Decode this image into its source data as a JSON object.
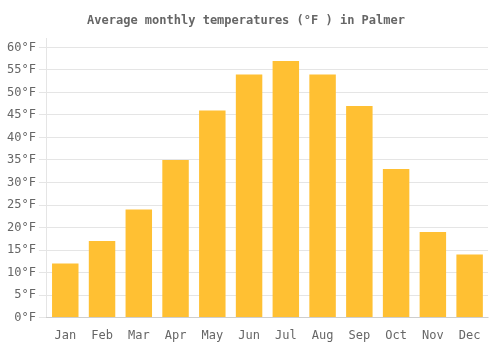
{
  "chart_data": {
    "type": "bar",
    "title": "Average monthly temperatures (°F ) in Palmer",
    "categories": [
      "Jan",
      "Feb",
      "Mar",
      "Apr",
      "May",
      "Jun",
      "Jul",
      "Aug",
      "Sep",
      "Oct",
      "Nov",
      "Dec"
    ],
    "values": [
      12,
      17,
      24,
      35,
      46,
      54,
      57,
      54,
      47,
      33,
      19,
      14
    ],
    "color": "#FFC033",
    "ylim": [
      0,
      62
    ],
    "yticks": [
      {
        "value": 0,
        "label": "0°F"
      },
      {
        "value": 5,
        "label": "5°F"
      },
      {
        "value": 10,
        "label": "10°F"
      },
      {
        "value": 15,
        "label": "15°F"
      },
      {
        "value": 20,
        "label": "20°F"
      },
      {
        "value": 25,
        "label": "25°F"
      },
      {
        "value": 30,
        "label": "30°F"
      },
      {
        "value": 35,
        "label": "35°F"
      },
      {
        "value": 40,
        "label": "40°F"
      },
      {
        "value": 45,
        "label": "45°F"
      },
      {
        "value": 50,
        "label": "50°F"
      },
      {
        "value": 55,
        "label": "55°F"
      },
      {
        "value": 60,
        "label": "60°F"
      }
    ],
    "grid": true
  }
}
